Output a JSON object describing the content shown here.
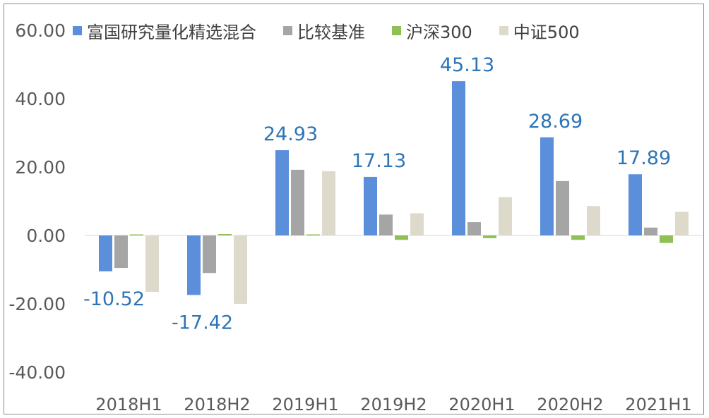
{
  "chart_data": {
    "type": "bar",
    "categories": [
      "2018H1",
      "2018H2",
      "2019H1",
      "2019H2",
      "2020H1",
      "2020H2",
      "2021H1"
    ],
    "series": [
      {
        "name": "富国研究量化精选混合",
        "color": "#5b8fdc",
        "values": [
          -10.52,
          -17.42,
          24.93,
          17.13,
          45.13,
          28.69,
          17.89
        ]
      },
      {
        "name": "比较基准",
        "color": "#a5a5a5",
        "values": [
          -9.5,
          -11.0,
          19.2,
          6.1,
          3.9,
          15.9,
          2.3
        ]
      },
      {
        "name": "沪深300",
        "color": "#8fbf55",
        "values": [
          0.3,
          0.4,
          0.3,
          -1.3,
          -0.8,
          -1.3,
          -2.2
        ]
      },
      {
        "name": "中证500",
        "color": "#dedacb",
        "values": [
          -16.5,
          -20.0,
          18.8,
          6.5,
          11.2,
          8.6,
          6.9
        ]
      }
    ],
    "data_labels": [
      "-10.52",
      "-17.42",
      "24.93",
      "17.13",
      "45.13",
      "28.69",
      "17.89"
    ],
    "label_color": "#2e75b6",
    "ylim": [
      -40,
      60
    ],
    "yticks": [
      "60.00",
      "40.00",
      "20.00",
      "0.00",
      "-20.00",
      "-40.00"
    ],
    "ytick_values": [
      60,
      40,
      20,
      0,
      -20,
      -40
    ],
    "legend_position": "top",
    "grid": false
  }
}
